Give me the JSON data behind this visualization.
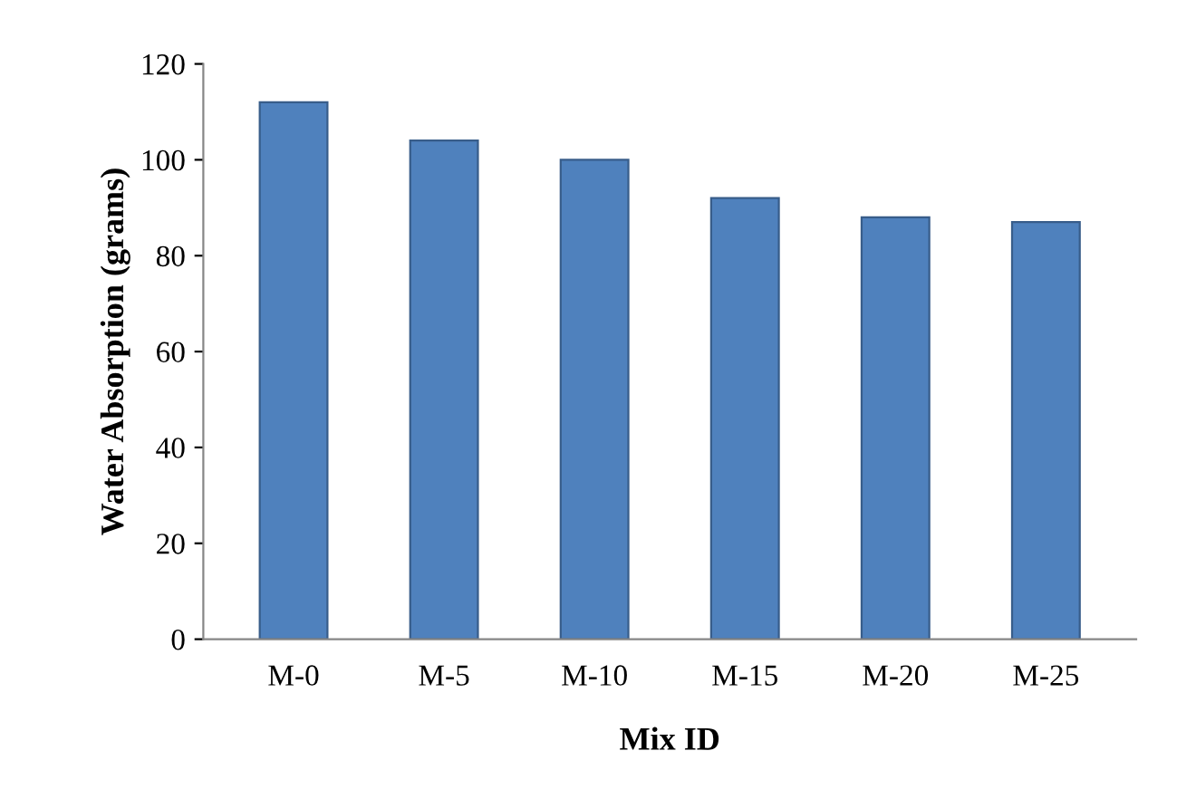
{
  "chart_data": {
    "type": "bar",
    "xlabel": "Mix ID",
    "ylabel": "Water Absorption (grams)",
    "categories": [
      "M-0",
      "M-5",
      "M-10",
      "M-15",
      "M-20",
      "M-25"
    ],
    "values": [
      112,
      104,
      100,
      92,
      88,
      87
    ],
    "color": "#4f81bd",
    "ylim": [
      0,
      120
    ],
    "yticks": [
      0,
      20,
      40,
      60,
      80,
      100,
      120
    ],
    "grid": false
  }
}
